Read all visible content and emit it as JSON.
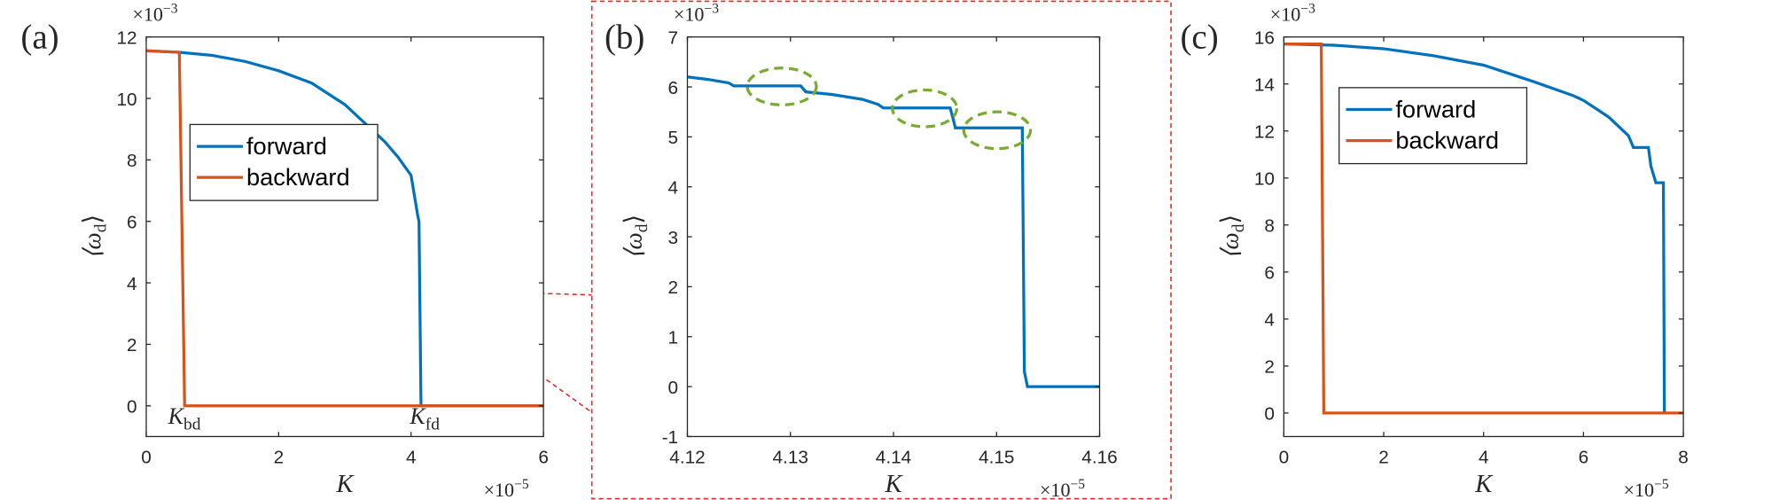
{
  "chart_data": [
    {
      "type": "line",
      "panel_label": "(a)",
      "xlabel": "K",
      "ylabel": [
        "⟨ω",
        "d",
        "⟩"
      ],
      "x_multiplier": [
        "×10",
        "−5"
      ],
      "y_multiplier": [
        "×10",
        "−3"
      ],
      "xlim": [
        0,
        6
      ],
      "ylim": [
        -1,
        12
      ],
      "xticks": [
        0,
        2,
        4,
        6
      ],
      "yticks": [
        0,
        2,
        4,
        6,
        8,
        10,
        12
      ],
      "legend": true,
      "series": [
        {
          "name": "forward",
          "color": "#0072bd",
          "x": [
            0,
            0.5,
            1,
            1.5,
            2,
            2.5,
            3,
            3.3,
            3.6,
            3.8,
            4.0,
            4.1,
            4.12,
            4.15,
            4.2,
            5,
            6
          ],
          "values": [
            11.55,
            11.5,
            11.4,
            11.2,
            10.9,
            10.5,
            9.8,
            9.2,
            8.6,
            8.1,
            7.5,
            6.2,
            6.0,
            0,
            0,
            0,
            0
          ]
        },
        {
          "name": "backward",
          "color": "#d95319",
          "x": [
            0,
            0.5,
            0.58,
            1,
            6
          ],
          "values": [
            11.55,
            11.5,
            0,
            0,
            0
          ]
        }
      ],
      "annotations": [
        [
          "K",
          "bd"
        ],
        [
          "K",
          "fd"
        ]
      ]
    },
    {
      "type": "line",
      "panel_label": "(b)",
      "xlabel": "K",
      "ylabel": [
        "⟨ω",
        "d",
        "⟩"
      ],
      "x_multiplier": [
        "×10",
        "−5"
      ],
      "y_multiplier": [
        "×10",
        "−3"
      ],
      "xlim": [
        4.12,
        4.16
      ],
      "ylim": [
        -1,
        7
      ],
      "xticks": [
        4.12,
        4.13,
        4.14,
        4.15,
        4.16
      ],
      "yticks": [
        -1,
        0,
        1,
        2,
        3,
        4,
        5,
        6,
        7
      ],
      "legend": false,
      "series": [
        {
          "name": "forward",
          "color": "#0072bd",
          "x": [
            4.12,
            4.122,
            4.124,
            4.1245,
            4.131,
            4.1315,
            4.134,
            4.137,
            4.1385,
            4.139,
            4.1455,
            4.1458,
            4.146,
            4.1525,
            4.1527,
            4.153,
            4.16
          ],
          "values": [
            6.2,
            6.15,
            6.08,
            6.02,
            6.02,
            5.9,
            5.85,
            5.75,
            5.65,
            5.58,
            5.58,
            5.35,
            5.18,
            5.18,
            0.3,
            0,
            0
          ]
        }
      ]
    },
    {
      "type": "line",
      "panel_label": "(c)",
      "xlabel": "K",
      "ylabel": [
        "⟨ω",
        "d",
        "⟩"
      ],
      "x_multiplier": [
        "×10",
        "−5"
      ],
      "y_multiplier": [
        "×10",
        "−3"
      ],
      "xlim": [
        0,
        8
      ],
      "ylim": [
        -1,
        16
      ],
      "xticks": [
        0,
        2,
        4,
        6,
        8
      ],
      "yticks": [
        0,
        2,
        4,
        6,
        8,
        10,
        12,
        14,
        16
      ],
      "legend": true,
      "series": [
        {
          "name": "forward",
          "color": "#0072bd",
          "x": [
            0,
            1,
            2,
            3,
            4,
            5,
            5.8,
            6,
            6.5,
            6.9,
            7.0,
            7.3,
            7.35,
            7.45,
            7.6,
            7.62
          ],
          "values": [
            15.7,
            15.65,
            15.5,
            15.2,
            14.8,
            14.1,
            13.5,
            13.3,
            12.6,
            11.8,
            11.3,
            11.3,
            10.5,
            9.8,
            9.8,
            0
          ]
        },
        {
          "name": "backward",
          "color": "#d95319",
          "x": [
            0,
            0.75,
            0.8,
            8
          ],
          "values": [
            15.7,
            15.7,
            0,
            0
          ]
        }
      ]
    }
  ]
}
